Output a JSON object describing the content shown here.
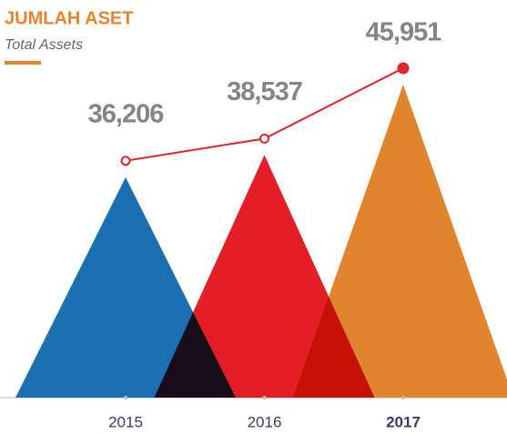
{
  "chart_data": {
    "type": "triangle",
    "title": "JUMLAH ASET",
    "subtitle": "Total Assets",
    "categories": [
      "2015",
      "2016",
      "2017"
    ],
    "series": [
      {
        "name": null,
        "colors": [
          "#1b6fb3",
          "#e31e24",
          "#e0852e"
        ],
        "values": [
          36206,
          38537,
          45951
        ],
        "value_labels": [
          "36,206",
          "38,537",
          "45,951"
        ]
      }
    ],
    "line_color": "#e0252b",
    "highlight": 2,
    "ylim": [
      13000,
      47000
    ]
  }
}
